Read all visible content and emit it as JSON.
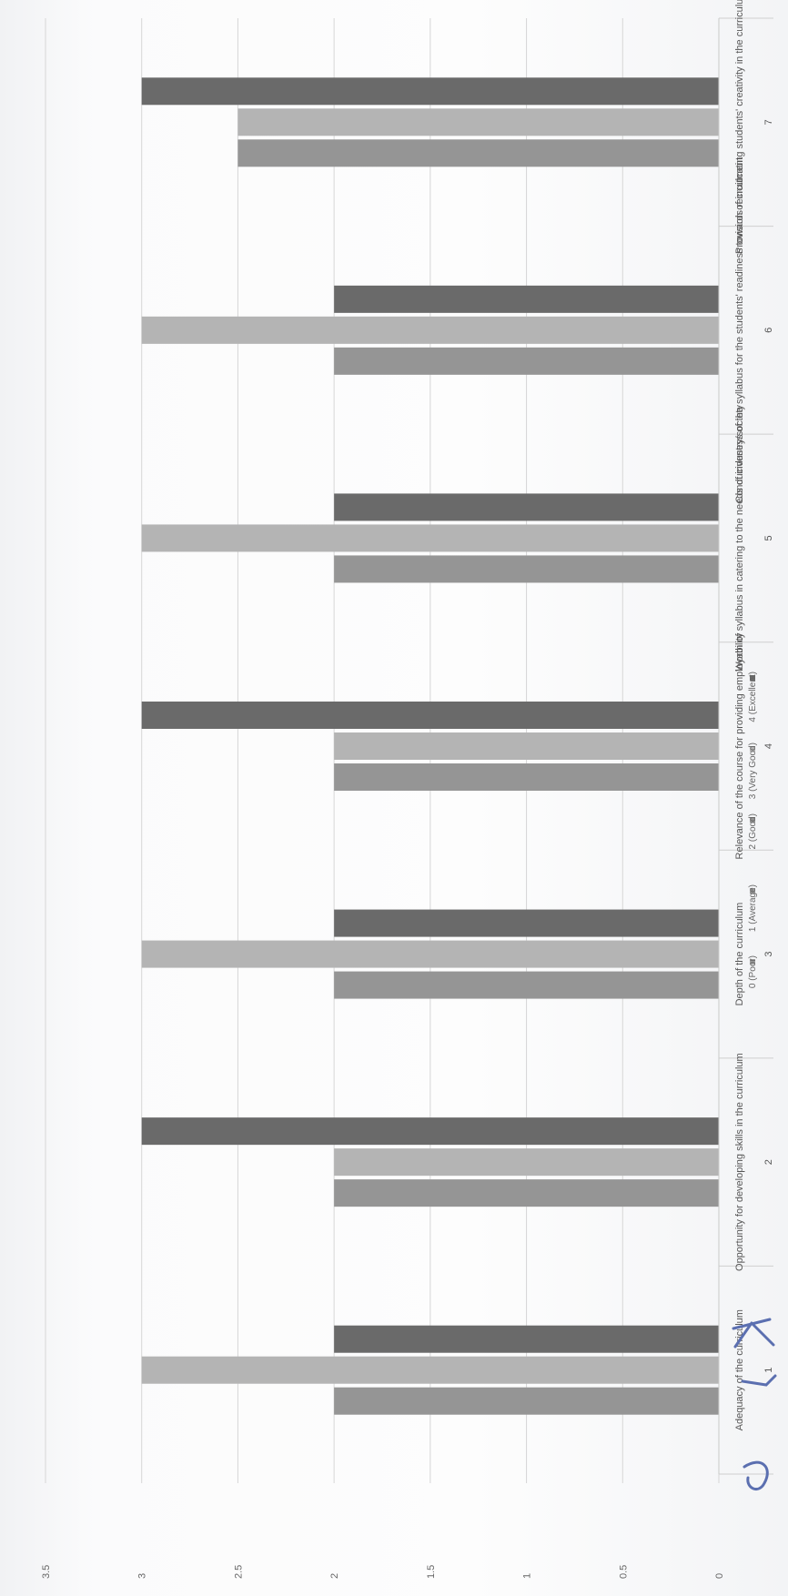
{
  "chart_data": {
    "type": "bar",
    "orientation": "horizontal",
    "categories": [
      "Adequacy of the curriculum",
      "Opportunity for developing skills in the curriculum",
      "Depth of the curriculum",
      "Relevance of the course for providing employability",
      "Worth of syllabus in catering to the needs of industry/society",
      "Conduciveness of the syllabus for the students' readiness towards recruitment",
      "Provision of inculcating students' creativity in the curriculum"
    ],
    "category_numbers": [
      "1",
      "2",
      "3",
      "4",
      "5",
      "6",
      "7"
    ],
    "series": [
      {
        "name": "0 (Poor)",
        "values": [
          0,
          0,
          0,
          0,
          0,
          0,
          0
        ],
        "color": "#9e9e9e"
      },
      {
        "name": "1 (Average)",
        "values": [
          0,
          0,
          0,
          0,
          0,
          0,
          0
        ],
        "color": "#9a9a9a"
      },
      {
        "name": "2 (Good)",
        "values": [
          2.0,
          2.0,
          2.0,
          2.0,
          2.0,
          2.0,
          2.5
        ],
        "color": "#959595"
      },
      {
        "name": "3 (Very Good)",
        "values": [
          3.0,
          2.0,
          3.0,
          2.0,
          3.0,
          3.0,
          2.5
        ],
        "color": "#b4b4b4"
      },
      {
        "name": "4 (Excellent)",
        "values": [
          2.0,
          3.0,
          2.0,
          3.0,
          2.0,
          2.0,
          3.0
        ],
        "color": "#6a6a6a"
      }
    ],
    "value_axis": {
      "min": 0,
      "max": 3.5,
      "ticks": [
        "0",
        "0.5",
        "1",
        "1.5",
        "2",
        "2.5",
        "3",
        "3.5"
      ]
    },
    "grid": true,
    "legend_position": "bottom"
  }
}
